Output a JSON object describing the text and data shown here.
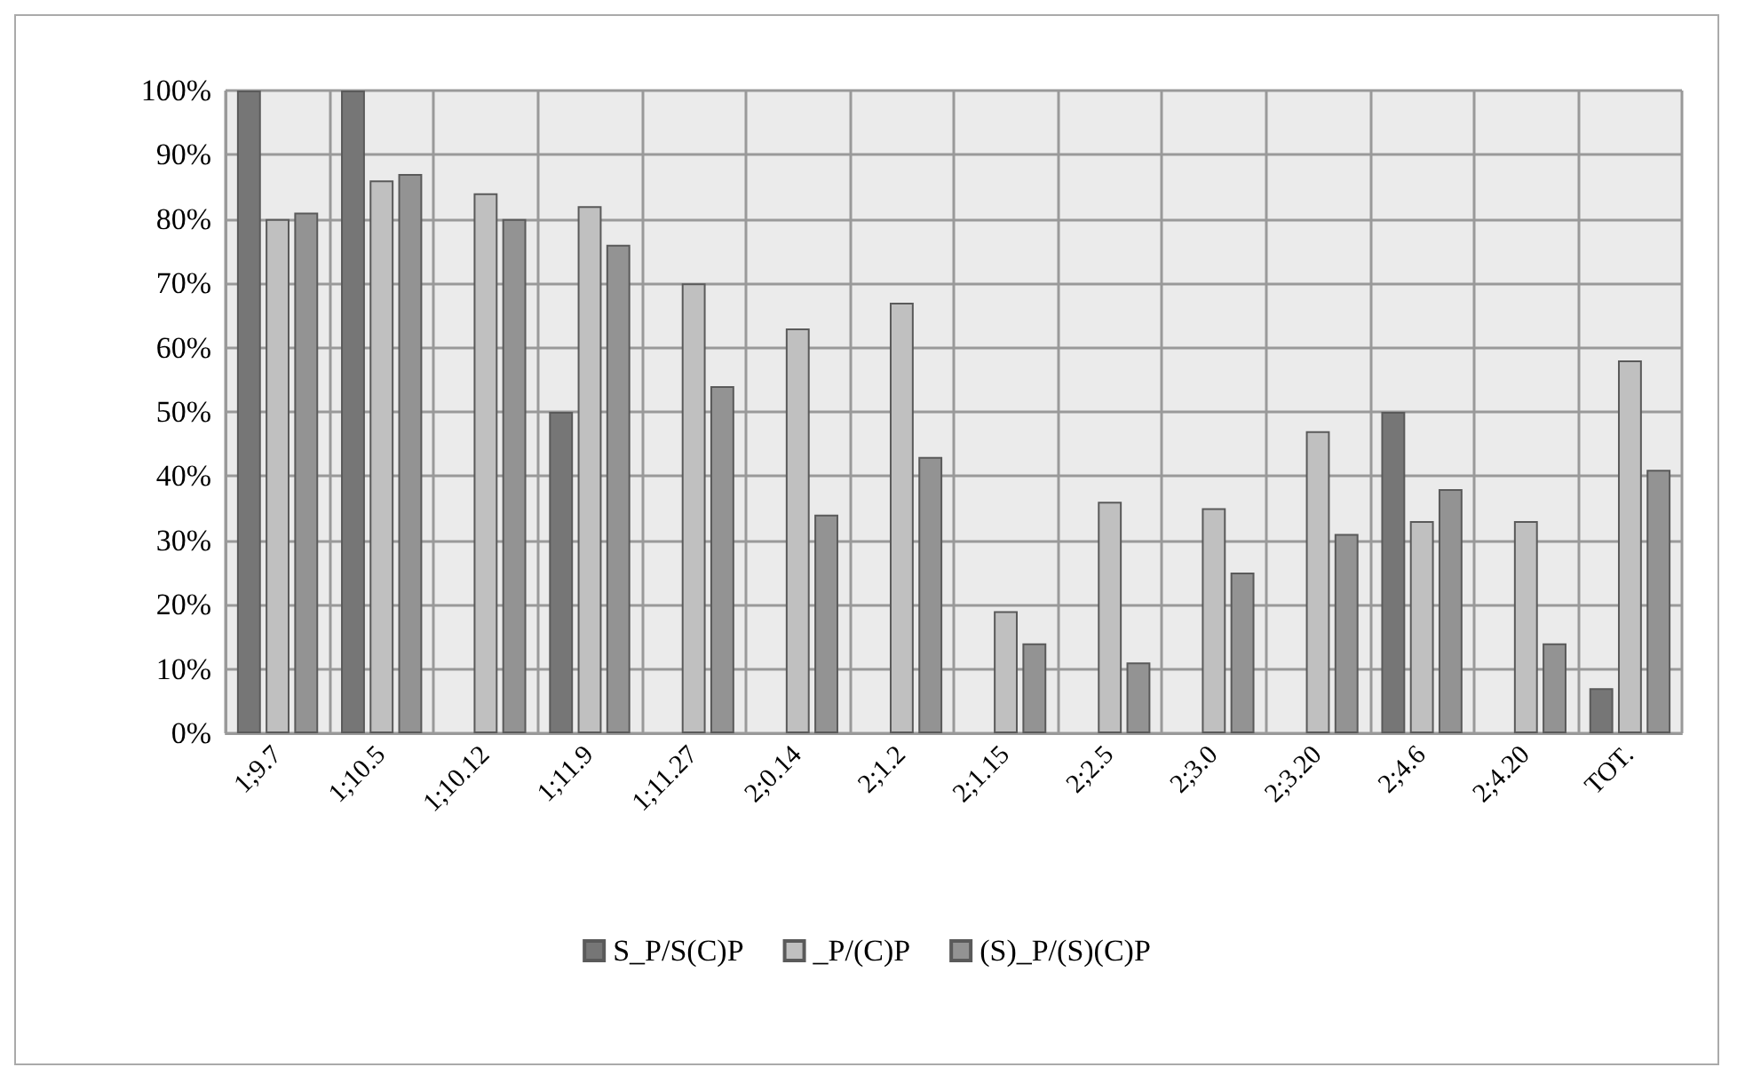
{
  "chart_data": {
    "type": "bar",
    "categories": [
      "1;9.7",
      "1;10.5",
      "1;10.12",
      "1;11.9",
      "1;11.27",
      "2;0.14",
      "2;1.2",
      "2;1.15",
      "2;2.5",
      "2;3.0",
      "2;3.20",
      "2;4.6",
      "2;4.20",
      "TOT."
    ],
    "series": [
      {
        "name": "S_P/S(C)P",
        "color": "#767676",
        "values": [
          100,
          100,
          null,
          50,
          null,
          null,
          null,
          null,
          null,
          null,
          null,
          50,
          null,
          7
        ]
      },
      {
        "name": "_P/(C)P",
        "color": "#c0c0c0",
        "values": [
          80,
          86,
          84,
          82,
          70,
          63,
          67,
          19,
          36,
          35,
          47,
          33,
          33,
          58
        ]
      },
      {
        "name": "(S)_P/(S)(C)P",
        "color": "#939393",
        "values": [
          81,
          87,
          80,
          76,
          54,
          34,
          43,
          14,
          11,
          25,
          31,
          38,
          14,
          41
        ]
      }
    ],
    "ylim": [
      0,
      100
    ],
    "yticks": [
      {
        "value": 0,
        "label": "0%"
      },
      {
        "value": 10,
        "label": "10%"
      },
      {
        "value": 20,
        "label": "20%"
      },
      {
        "value": 30,
        "label": "30%"
      },
      {
        "value": 40,
        "label": "40%"
      },
      {
        "value": 50,
        "label": "50%"
      },
      {
        "value": 60,
        "label": "60%"
      },
      {
        "value": 70,
        "label": "70%"
      },
      {
        "value": 80,
        "label": "80%"
      },
      {
        "value": 90,
        "label": "90%"
      },
      {
        "value": 100,
        "label": "100%"
      }
    ],
    "grid": true,
    "legend": "bottom"
  }
}
